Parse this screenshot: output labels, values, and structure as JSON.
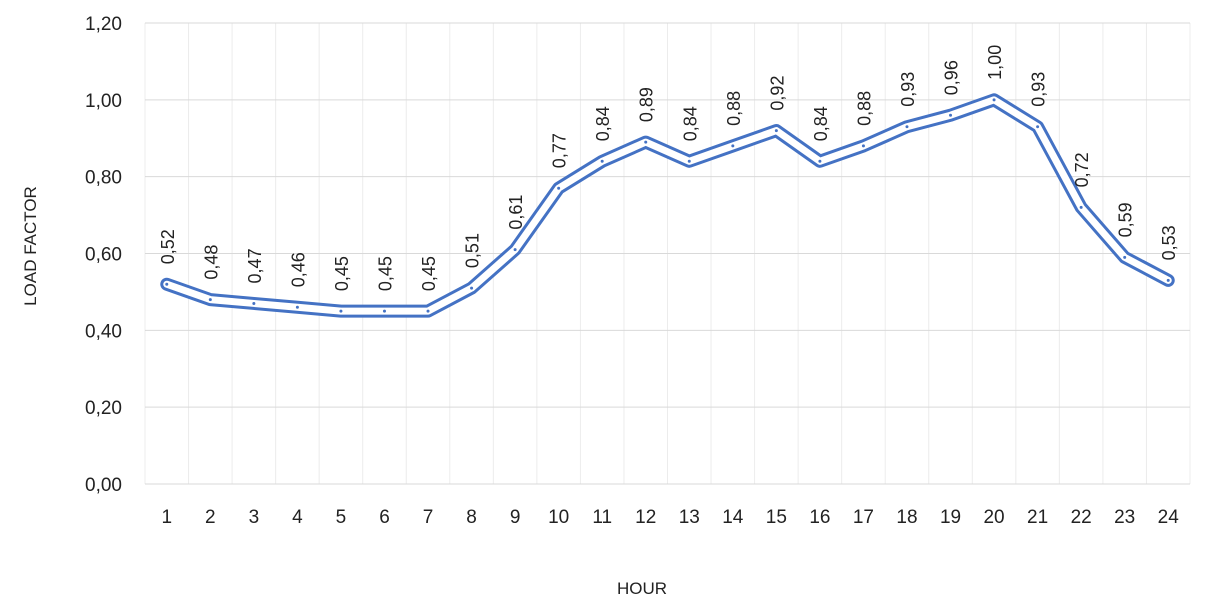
{
  "chart_data": {
    "type": "line",
    "title": "",
    "xlabel": "HOUR",
    "ylabel": "LOAD FACTOR",
    "categories": [
      "1",
      "2",
      "3",
      "4",
      "5",
      "6",
      "7",
      "8",
      "9",
      "10",
      "11",
      "12",
      "13",
      "14",
      "15",
      "16",
      "17",
      "18",
      "19",
      "20",
      "21",
      "22",
      "23",
      "24"
    ],
    "series": [
      {
        "values": [
          0.52,
          0.48,
          0.47,
          0.46,
          0.45,
          0.45,
          0.45,
          0.51,
          0.61,
          0.77,
          0.84,
          0.89,
          0.84,
          0.88,
          0.92,
          0.84,
          0.88,
          0.93,
          0.96,
          1.0,
          0.93,
          0.72,
          0.59,
          0.53
        ],
        "labels": [
          "0,52",
          "0,48",
          "0,47",
          "0,46",
          "0,45",
          "0,45",
          "0,45",
          "0,51",
          "0,61",
          "0,77",
          "0,84",
          "0,89",
          "0,84",
          "0,88",
          "0,92",
          "0,84",
          "0,88",
          "0,93",
          "0,96",
          "1,00",
          "0,93",
          "0,72",
          "0,59",
          "0,53"
        ]
      }
    ],
    "yticks": [
      "0,00",
      "0,20",
      "0,40",
      "0,60",
      "0,80",
      "1,00",
      "1,20"
    ],
    "ylim": [
      0,
      1.2
    ],
    "grid": true,
    "legend": "none",
    "line_color": "#4472c4"
  }
}
